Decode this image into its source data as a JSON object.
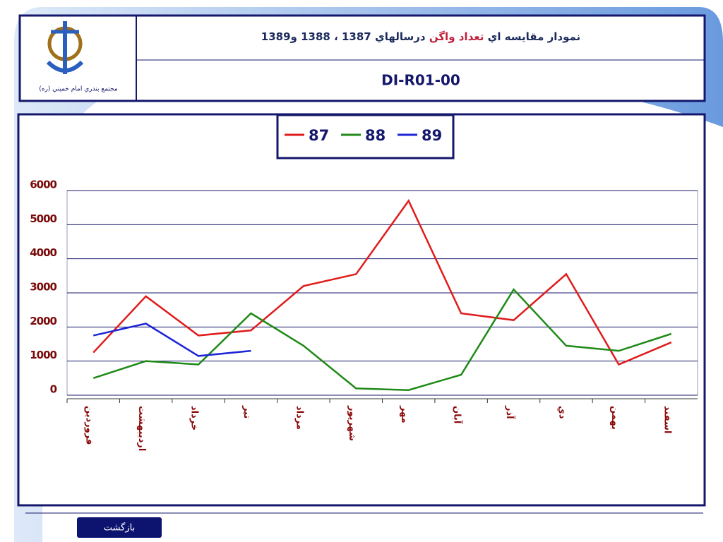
{
  "header": {
    "title": [
      "نمودار مقايسه اي ",
      "تعداد واگن",
      " درسالهاي 1387 ، 1388 و1389"
    ],
    "code": "DI-R01-00",
    "logo_caption": "مجتمع بندري امام خميني (ره)"
  },
  "back_button": "بازگشت",
  "chart_data": {
    "type": "line",
    "categories": [
      "فروردين",
      "ارديبهشت",
      "خرداد",
      "تير",
      "مرداد",
      "شهريور",
      "مهر",
      "آبان",
      "آذر",
      "دي",
      "بهمن",
      "اسفند"
    ],
    "series": [
      {
        "name": "87",
        "color": "#e01b1b",
        "values": [
          1250,
          2900,
          1750,
          1900,
          3200,
          3550,
          5700,
          2400,
          2200,
          3550,
          900,
          1550
        ]
      },
      {
        "name": "88",
        "color": "#1f8a17",
        "values": [
          500,
          1000,
          900,
          2400,
          1450,
          200,
          150,
          600,
          3100,
          1450,
          1300,
          1800
        ]
      },
      {
        "name": "89",
        "color": "#1d25d6",
        "values": [
          1750,
          2100,
          1150,
          1300,
          null,
          null,
          null,
          null,
          null,
          null,
          null,
          null
        ]
      }
    ],
    "ylim": [
      0,
      6000
    ],
    "yticks": [
      0,
      1000,
      2000,
      3000,
      4000,
      5000,
      6000
    ],
    "grid": true,
    "legend": "top"
  }
}
